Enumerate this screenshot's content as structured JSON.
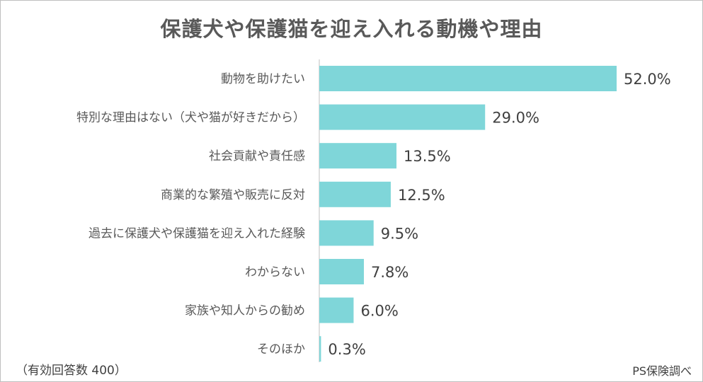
{
  "chart_data": {
    "type": "bar",
    "orientation": "horizontal",
    "title": "保護犬や保護猫を迎え入れる動機や理由",
    "categories": [
      "動物を助けたい",
      "特別な理由はない（犬や猫が好きだから）",
      "社会貢献や責任感",
      "商業的な繁殖や販売に反対",
      "過去に保護犬や保護猫を迎え入れた経験",
      "わからない",
      "家族や知人からの勧め",
      "そのほか"
    ],
    "values": [
      52.0,
      29.0,
      13.5,
      12.5,
      9.5,
      7.8,
      6.0,
      0.3
    ],
    "value_labels": [
      "52.0%",
      "29.0%",
      "13.5%",
      "12.5%",
      "9.5%",
      "7.8%",
      "6.0%",
      "0.3%"
    ],
    "unit": "%",
    "xlim": [
      0,
      52
    ],
    "bar_color": "#7fd6d9",
    "axis_color": "#bfbfbf",
    "grid": false,
    "legend": "none"
  },
  "footnote": "（有効回答数 400）",
  "source": "PS保険調べ"
}
